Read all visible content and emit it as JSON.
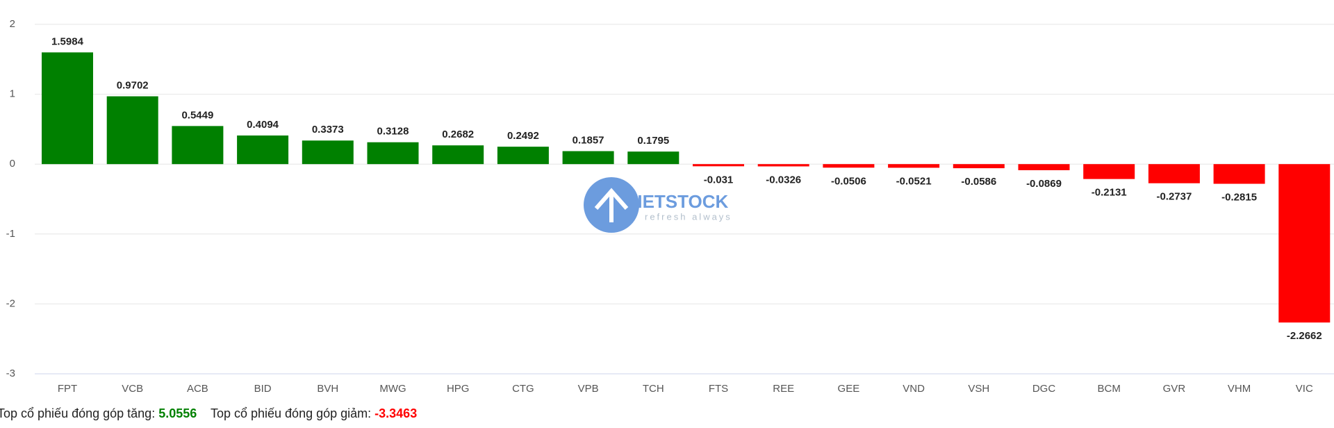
{
  "chart_data": {
    "type": "bar",
    "categories": [
      "FPT",
      "VCB",
      "ACB",
      "BID",
      "BVH",
      "MWG",
      "HPG",
      "CTG",
      "VPB",
      "TCH",
      "FTS",
      "REE",
      "GEE",
      "VND",
      "VSH",
      "DGC",
      "BCM",
      "GVR",
      "VHM",
      "VIC"
    ],
    "values": [
      1.5984,
      0.9702,
      0.5449,
      0.4094,
      0.3373,
      0.3128,
      0.2682,
      0.2492,
      0.1857,
      0.1795,
      -0.031,
      -0.0326,
      -0.0506,
      -0.0521,
      -0.0586,
      -0.0869,
      -0.2131,
      -0.2737,
      -0.2815,
      -2.2662
    ],
    "positive_color": "#008000",
    "negative_color": "#ff0000",
    "ylim": [
      -3,
      2
    ],
    "yticks": [
      -3,
      -2,
      -1,
      0,
      1,
      2
    ],
    "grid": true
  },
  "watermark": {
    "brand": "VIETSTOCK",
    "tagline": "refresh always"
  },
  "summary": {
    "gain_label": "Top cổ phiếu đóng góp tăng:",
    "gain_value": 5.0556,
    "loss_label": "Top cổ phiếu đóng góp giảm:",
    "loss_value": -3.3463
  }
}
